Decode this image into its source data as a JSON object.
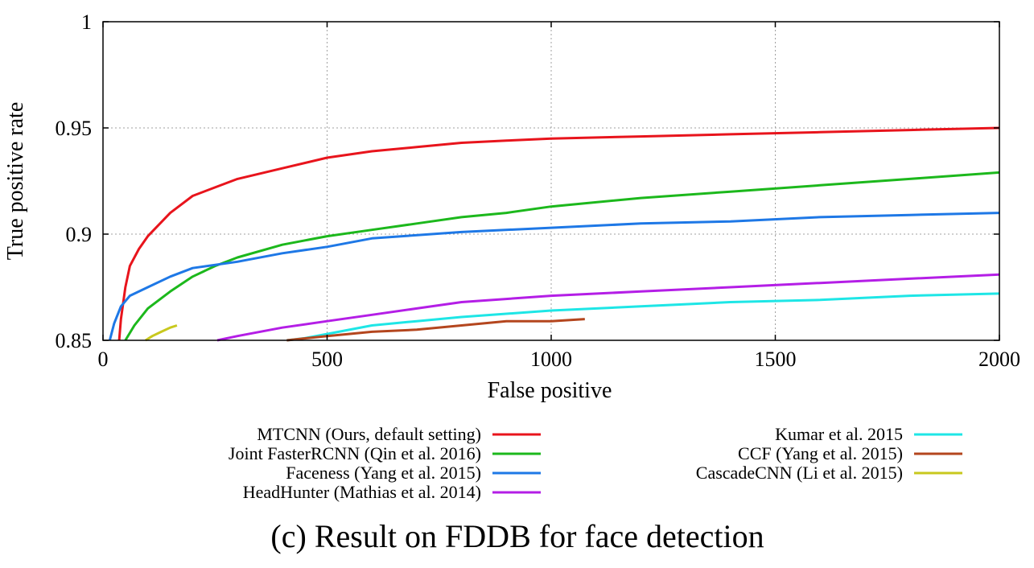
{
  "chart_data": {
    "type": "line",
    "caption": "(c) Result on FDDB for face detection",
    "xlabel": "False positive",
    "ylabel": "True positive rate",
    "xlim": [
      0,
      2000
    ],
    "ylim": [
      0.85,
      1
    ],
    "xticks": [
      0,
      500,
      1000,
      1500,
      2000
    ],
    "yticks": [
      0.85,
      0.9,
      0.95,
      1
    ],
    "ytick_labels": [
      "0.85",
      "0.9",
      "0.95",
      "1"
    ],
    "grid": true,
    "legend_position": "below",
    "series": [
      {
        "name": "MTCNN (Ours, default setting)",
        "color": "#e8141c",
        "points": [
          [
            36,
            0.85
          ],
          [
            40,
            0.86
          ],
          [
            50,
            0.875
          ],
          [
            60,
            0.885
          ],
          [
            80,
            0.893
          ],
          [
            100,
            0.899
          ],
          [
            150,
            0.91
          ],
          [
            200,
            0.918
          ],
          [
            250,
            0.922
          ],
          [
            300,
            0.926
          ],
          [
            400,
            0.931
          ],
          [
            500,
            0.936
          ],
          [
            600,
            0.939
          ],
          [
            700,
            0.941
          ],
          [
            800,
            0.943
          ],
          [
            900,
            0.944
          ],
          [
            1000,
            0.945
          ],
          [
            1200,
            0.946
          ],
          [
            1400,
            0.947
          ],
          [
            1600,
            0.948
          ],
          [
            1800,
            0.949
          ],
          [
            2000,
            0.95
          ]
        ]
      },
      {
        "name": "Joint FasterRCNN (Qin et al. 2016)",
        "color": "#1cb81c",
        "points": [
          [
            50,
            0.85
          ],
          [
            70,
            0.857
          ],
          [
            100,
            0.865
          ],
          [
            150,
            0.873
          ],
          [
            200,
            0.88
          ],
          [
            250,
            0.885
          ],
          [
            300,
            0.889
          ],
          [
            400,
            0.895
          ],
          [
            500,
            0.899
          ],
          [
            600,
            0.902
          ],
          [
            700,
            0.905
          ],
          [
            800,
            0.908
          ],
          [
            900,
            0.91
          ],
          [
            1000,
            0.913
          ],
          [
            1200,
            0.917
          ],
          [
            1400,
            0.92
          ],
          [
            1600,
            0.923
          ],
          [
            1800,
            0.926
          ],
          [
            2000,
            0.929
          ]
        ]
      },
      {
        "name": "Faceness (Yang et al. 2015)",
        "color": "#1e78e6",
        "points": [
          [
            15,
            0.85
          ],
          [
            25,
            0.858
          ],
          [
            40,
            0.866
          ],
          [
            60,
            0.871
          ],
          [
            100,
            0.875
          ],
          [
            150,
            0.88
          ],
          [
            200,
            0.884
          ],
          [
            300,
            0.887
          ],
          [
            400,
            0.891
          ],
          [
            500,
            0.894
          ],
          [
            600,
            0.898
          ],
          [
            800,
            0.901
          ],
          [
            1000,
            0.903
          ],
          [
            1200,
            0.905
          ],
          [
            1400,
            0.906
          ],
          [
            1600,
            0.908
          ],
          [
            1800,
            0.909
          ],
          [
            2000,
            0.91
          ]
        ]
      },
      {
        "name": "HeadHunter (Mathias et al. 2014)",
        "color": "#b41ee6",
        "points": [
          [
            255,
            0.85
          ],
          [
            300,
            0.852
          ],
          [
            400,
            0.856
          ],
          [
            500,
            0.859
          ],
          [
            600,
            0.862
          ],
          [
            700,
            0.865
          ],
          [
            800,
            0.868
          ],
          [
            1000,
            0.871
          ],
          [
            1200,
            0.873
          ],
          [
            1400,
            0.875
          ],
          [
            1600,
            0.877
          ],
          [
            1800,
            0.879
          ],
          [
            2000,
            0.881
          ]
        ]
      },
      {
        "name": "Kumar et al. 2015",
        "color": "#1ee6e6",
        "points": [
          [
            410,
            0.85
          ],
          [
            450,
            0.851
          ],
          [
            500,
            0.853
          ],
          [
            600,
            0.857
          ],
          [
            700,
            0.859
          ],
          [
            800,
            0.861
          ],
          [
            1000,
            0.864
          ],
          [
            1200,
            0.866
          ],
          [
            1400,
            0.868
          ],
          [
            1600,
            0.869
          ],
          [
            1800,
            0.871
          ],
          [
            2000,
            0.872
          ]
        ]
      },
      {
        "name": "CCF (Yang et al. 2015)",
        "color": "#b4461e",
        "points": [
          [
            410,
            0.85
          ],
          [
            500,
            0.852
          ],
          [
            600,
            0.854
          ],
          [
            700,
            0.855
          ],
          [
            800,
            0.857
          ],
          [
            900,
            0.859
          ],
          [
            1000,
            0.859
          ],
          [
            1075,
            0.86
          ]
        ]
      },
      {
        "name": "CascadeCNN (Li et al. 2015)",
        "color": "#c8c81e",
        "points": [
          [
            95,
            0.85
          ],
          [
            110,
            0.852
          ],
          [
            130,
            0.854
          ],
          [
            150,
            0.856
          ],
          [
            165,
            0.857
          ]
        ]
      }
    ]
  }
}
